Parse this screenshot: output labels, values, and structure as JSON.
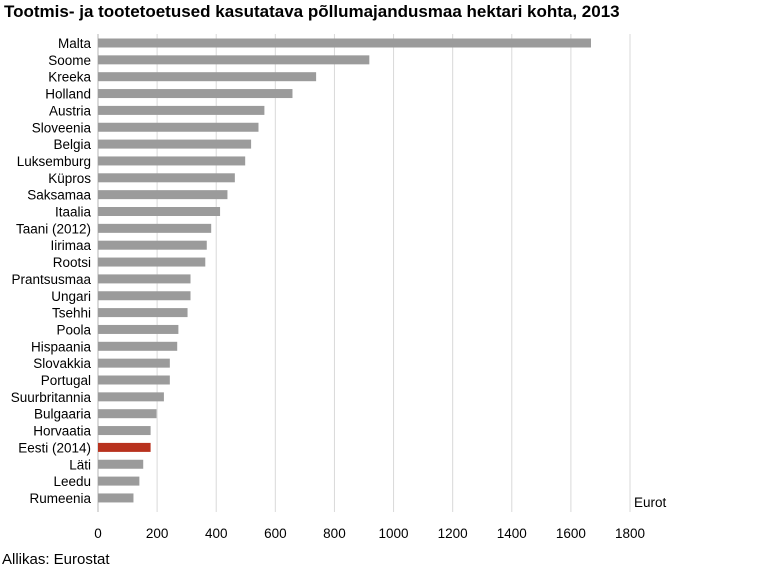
{
  "chart_data": {
    "type": "bar",
    "orientation": "horizontal",
    "title": "Tootmis- ja tootetoetused kasutatava põllumajandusmaa hektari kohta, 2013",
    "source": "Allikas: Eurostat",
    "unit_label": "Eurot",
    "xlim": [
      0,
      1800
    ],
    "xticks": [
      0,
      200,
      400,
      600,
      800,
      1000,
      1200,
      1400,
      1600,
      1800
    ],
    "vertical_grid": true,
    "legend": "none",
    "colors": {
      "default": "#9b9b9b",
      "highlight": "#b8321e",
      "grid": "#d9d9d9"
    },
    "highlight_category": "Eesti (2014)",
    "categories": [
      "Malta",
      "Soome",
      "Kreeka",
      "Holland",
      "Austria",
      "Sloveenia",
      "Belgia",
      "Luksemburg",
      "Küpros",
      "Saksamaa",
      "Itaalia",
      "Taani (2012)",
      "Iirimaa",
      "Rootsi",
      "Prantsusmaa",
      "Ungari",
      "Tsehhi",
      "Poola",
      "Hispaania",
      "Slovakkia",
      "Portugal",
      "Suurbritannia",
      "Bulgaaria",
      "Horvaatia",
      "Eesti (2014)",
      "Läti",
      "Leedu",
      "Rumeenia"
    ],
    "values": [
      1668,
      918,
      738,
      658,
      563,
      543,
      518,
      498,
      463,
      438,
      413,
      383,
      368,
      363,
      313,
      313,
      303,
      272,
      268,
      243,
      243,
      223,
      198,
      178,
      178,
      153,
      140,
      120
    ]
  }
}
